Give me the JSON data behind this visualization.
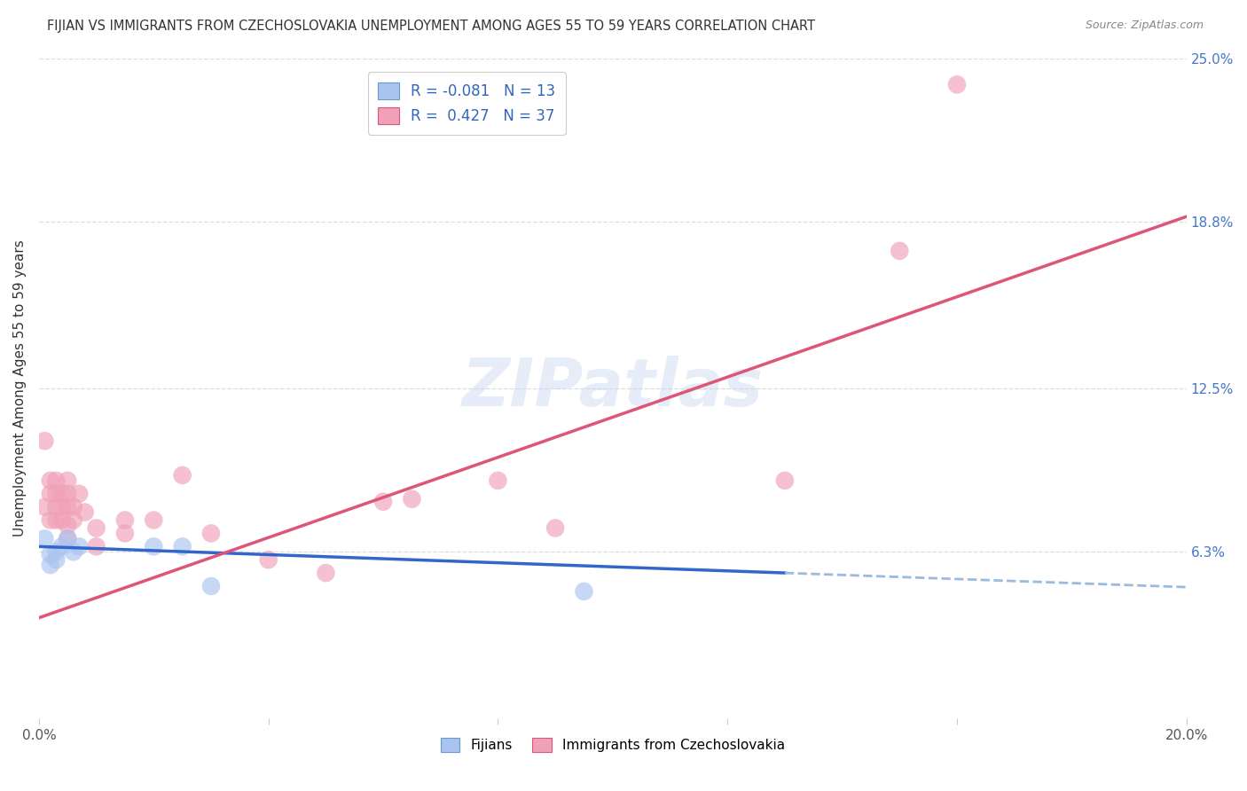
{
  "title": "FIJIAN VS IMMIGRANTS FROM CZECHOSLOVAKIA UNEMPLOYMENT AMONG AGES 55 TO 59 YEARS CORRELATION CHART",
  "source": "Source: ZipAtlas.com",
  "ylabel": "Unemployment Among Ages 55 to 59 years",
  "xmin": 0.0,
  "xmax": 0.2,
  "ymin": 0.0,
  "ymax": 0.25,
  "x_ticks": [
    0.0,
    0.04,
    0.08,
    0.12,
    0.16,
    0.2
  ],
  "y_tick_labels_right": [
    "6.3%",
    "12.5%",
    "18.8%",
    "25.0%"
  ],
  "y_ticks_right": [
    0.063,
    0.125,
    0.188,
    0.25
  ],
  "grid_color": "#dddddd",
  "watermark_text": "ZIPatlas",
  "fijians_scatter_color": "#aac4f0",
  "czech_scatter_color": "#f0a0b8",
  "fijian_line_color": "#3366cc",
  "fijian_dash_color": "#99bbdd",
  "czech_line_color": "#dd5577",
  "legend_R1": "-0.081",
  "legend_N1": "13",
  "legend_R2": "0.427",
  "legend_N2": "37",
  "fijians_x": [
    0.001,
    0.002,
    0.002,
    0.003,
    0.003,
    0.004,
    0.005,
    0.006,
    0.007,
    0.02,
    0.025,
    0.03,
    0.095
  ],
  "fijians_y": [
    0.068,
    0.062,
    0.058,
    0.063,
    0.06,
    0.065,
    0.068,
    0.063,
    0.065,
    0.065,
    0.065,
    0.05,
    0.048
  ],
  "czech_x": [
    0.001,
    0.001,
    0.002,
    0.002,
    0.002,
    0.003,
    0.003,
    0.003,
    0.003,
    0.004,
    0.004,
    0.004,
    0.005,
    0.005,
    0.005,
    0.005,
    0.005,
    0.006,
    0.006,
    0.007,
    0.008,
    0.01,
    0.01,
    0.015,
    0.015,
    0.02,
    0.025,
    0.03,
    0.04,
    0.05,
    0.06,
    0.065,
    0.08,
    0.09,
    0.13,
    0.15,
    0.16
  ],
  "czech_y": [
    0.105,
    0.08,
    0.09,
    0.085,
    0.075,
    0.09,
    0.085,
    0.08,
    0.075,
    0.085,
    0.08,
    0.075,
    0.09,
    0.085,
    0.08,
    0.073,
    0.068,
    0.08,
    0.075,
    0.085,
    0.078,
    0.072,
    0.065,
    0.075,
    0.07,
    0.075,
    0.092,
    0.07,
    0.06,
    0.055,
    0.082,
    0.083,
    0.09,
    0.072,
    0.09,
    0.177,
    0.24
  ],
  "fijian_line_x0": 0.0,
  "fijian_line_x1": 0.13,
  "fijian_line_x_dash": 0.2,
  "fijian_line_y0": 0.065,
  "fijian_line_y1": 0.055,
  "czech_line_y0": 0.038,
  "czech_line_y1": 0.19,
  "background_color": "#ffffff"
}
